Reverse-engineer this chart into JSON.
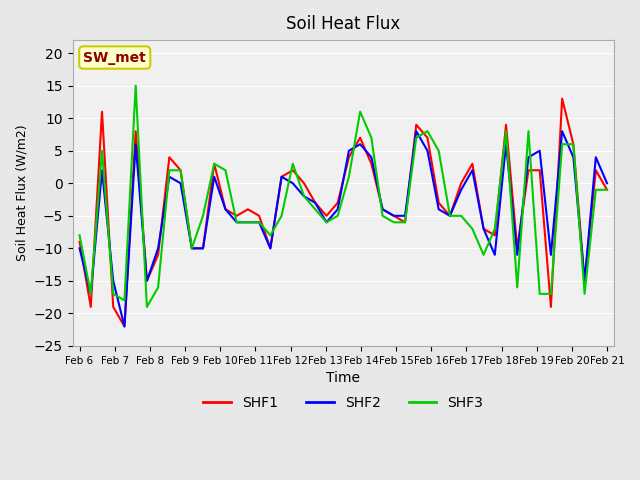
{
  "title": "Soil Heat Flux",
  "xlabel": "Time",
  "ylabel": "Soil Heat Flux (W/m2)",
  "ylim": [
    -25,
    22
  ],
  "yticks": [
    -25,
    -20,
    -15,
    -10,
    -5,
    0,
    5,
    10,
    15,
    20
  ],
  "bg_color": "#e8e8e8",
  "plot_bg_color": "#f0f0f0",
  "legend_label": "SW_met",
  "legend_text_color": "#8b0000",
  "legend_box_facecolor": "#ffffcc",
  "legend_box_edgecolor": "#cccc00",
  "series_colors": [
    "#ff0000",
    "#0000ff",
    "#00cc00"
  ],
  "series_labels": [
    "SHF1",
    "SHF2",
    "SHF3"
  ],
  "x_labels": [
    "Feb 6",
    "Feb 7",
    "Feb 8",
    "Feb 9",
    "Feb 10",
    "Feb 11",
    "Feb 12",
    "Feb 13",
    "Feb 14",
    "Feb 15",
    "Feb 16",
    "Feb 17",
    "Feb 18",
    "Feb 19",
    "Feb 20",
    "Feb 21"
  ],
  "shf1": [
    -9,
    -19,
    11,
    -19,
    -22,
    8,
    -15,
    -11,
    4,
    2,
    -10,
    -10,
    3,
    -4,
    -5,
    -4,
    -5,
    -10,
    1,
    2,
    0,
    -3,
    -5,
    -3,
    4,
    7,
    3,
    -4,
    -5,
    -6,
    9,
    7,
    -3,
    -5,
    0,
    3,
    -7,
    -8,
    9,
    -10,
    2,
    2,
    -19,
    13,
    6,
    -15,
    2,
    -1
  ],
  "shf2": [
    -10,
    -17,
    2,
    -15,
    -22,
    6,
    -15,
    -10,
    1,
    0,
    -10,
    -10,
    1,
    -4,
    -6,
    -6,
    -6,
    -10,
    1,
    0,
    -2,
    -3,
    -6,
    -4,
    5,
    6,
    4,
    -4,
    -5,
    -5,
    8,
    5,
    -4,
    -5,
    -1,
    2,
    -7,
    -11,
    6,
    -11,
    4,
    5,
    -11,
    8,
    4,
    -15,
    4,
    0
  ],
  "shf3": [
    -8,
    -17,
    5,
    -17,
    -18,
    15,
    -19,
    -16,
    2,
    2,
    -10,
    -5,
    3,
    2,
    -6,
    -6,
    -6,
    -8,
    -5,
    3,
    -2,
    -4,
    -6,
    -5,
    1,
    11,
    7,
    -5,
    -6,
    -6,
    7,
    8,
    5,
    -5,
    -5,
    -7,
    -11,
    -7,
    8,
    -16,
    8,
    -17,
    -17,
    6,
    6,
    -17,
    -1,
    -1
  ]
}
